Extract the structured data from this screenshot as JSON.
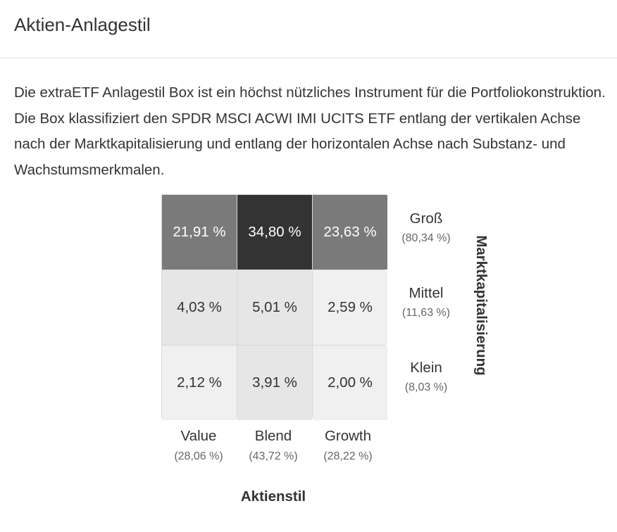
{
  "header": {
    "title": "Aktien-Anlagestil"
  },
  "description": "Die extraETF Anlagestil Box ist ein höchst nützliches Instrument für die Portfoliokonstruktion. Die Box klassifiziert den SPDR MSCI ACWI IMI UCITS ETF entlang der vertikalen Achse nach der Marktkapitalisierung und entlang der horizontalen Achse nach Substanz- und Wachstumsmerkmalen.",
  "stylebox": {
    "cells": [
      [
        {
          "value": "21,91 %",
          "bg": "#7a7a7a",
          "fg": "#ffffff"
        },
        {
          "value": "34,80 %",
          "bg": "#333333",
          "fg": "#ffffff"
        },
        {
          "value": "23,63 %",
          "bg": "#7a7a7a",
          "fg": "#ffffff"
        }
      ],
      [
        {
          "value": "4,03 %",
          "bg": "#e6e6e6",
          "fg": "#333333"
        },
        {
          "value": "5,01 %",
          "bg": "#e6e6e6",
          "fg": "#333333"
        },
        {
          "value": "2,59 %",
          "bg": "#f0f0f0",
          "fg": "#333333"
        }
      ],
      [
        {
          "value": "2,12 %",
          "bg": "#f0f0f0",
          "fg": "#333333"
        },
        {
          "value": "3,91 %",
          "bg": "#e6e6e6",
          "fg": "#333333"
        },
        {
          "value": "2,00 %",
          "bg": "#f0f0f0",
          "fg": "#333333"
        }
      ]
    ],
    "rows": [
      {
        "label": "Groß",
        "pct": "(80,34 %)"
      },
      {
        "label": "Mittel",
        "pct": "(11,63 %)"
      },
      {
        "label": "Klein",
        "pct": "(8,03 %)"
      }
    ],
    "columns": [
      {
        "label": "Value",
        "pct": "(28,06 %)"
      },
      {
        "label": "Blend",
        "pct": "(43,72 %)"
      },
      {
        "label": "Growth",
        "pct": "(28,22 %)"
      }
    ],
    "y_axis_label": "Marktkapitalisierung",
    "x_axis_label": "Aktienstil"
  }
}
